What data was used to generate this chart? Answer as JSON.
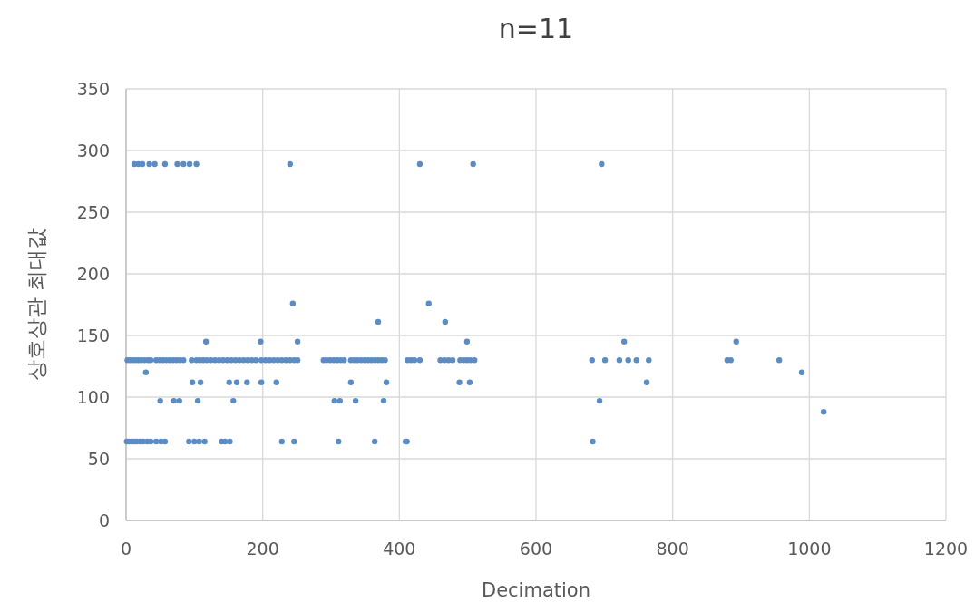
{
  "chart_data": {
    "type": "scatter",
    "title": "n=11",
    "xlabel": "Decimation",
    "ylabel": "상호상관 최대값",
    "xlim": [
      0,
      1200
    ],
    "xticks": [
      0,
      200,
      400,
      600,
      800,
      1000,
      1200
    ],
    "ylim": [
      0,
      350
    ],
    "yticks": [
      0,
      50,
      100,
      150,
      200,
      250,
      300,
      350
    ],
    "grid": true,
    "marker": "circle",
    "series": [
      {
        "color": "#5b8cc4",
        "x": [
          12,
          18,
          24,
          34,
          42,
          57,
          75,
          84,
          93,
          103,
          240,
          430,
          508,
          696,
          244,
          443,
          369,
          467,
          117,
          197,
          251,
          499,
          729,
          893,
          2,
          6,
          10,
          14,
          18,
          22,
          27,
          32,
          36,
          44,
          49,
          54,
          59,
          64,
          69,
          74,
          79,
          84,
          96,
          103,
          108,
          113,
          118,
          124,
          130,
          136,
          142,
          148,
          154,
          160,
          166,
          172,
          178,
          184,
          190,
          198,
          204,
          210,
          216,
          222,
          228,
          234,
          240,
          246,
          251,
          289,
          294,
          299,
          304,
          309,
          314,
          319,
          329,
          334,
          339,
          344,
          349,
          354,
          359,
          364,
          369,
          374,
          379,
          412,
          417,
          422,
          430,
          460,
          466,
          472,
          478,
          489,
          494,
          499,
          504,
          510,
          682,
          701,
          722,
          735,
          747,
          765,
          880,
          885,
          956,
          29,
          989,
          97,
          109,
          151,
          162,
          177,
          198,
          220,
          329,
          381,
          488,
          503,
          762,
          50,
          70,
          78,
          105,
          157,
          305,
          313,
          336,
          377,
          693,
          1,
          4,
          8,
          12,
          16,
          21,
          25,
          31,
          36,
          44,
          51,
          57,
          92,
          100,
          107,
          115,
          140,
          145,
          152,
          228,
          246,
          311,
          364,
          409,
          411,
          683,
          1021
        ],
        "values": [
          289,
          289,
          289,
          289,
          289,
          289,
          289,
          289,
          289,
          289,
          289,
          289,
          289,
          289,
          176,
          176,
          161,
          161,
          145,
          145,
          145,
          145,
          145,
          145,
          130,
          130,
          130,
          130,
          130,
          130,
          130,
          130,
          130,
          130,
          130,
          130,
          130,
          130,
          130,
          130,
          130,
          130,
          130,
          130,
          130,
          130,
          130,
          130,
          130,
          130,
          130,
          130,
          130,
          130,
          130,
          130,
          130,
          130,
          130,
          130,
          130,
          130,
          130,
          130,
          130,
          130,
          130,
          130,
          130,
          130,
          130,
          130,
          130,
          130,
          130,
          130,
          130,
          130,
          130,
          130,
          130,
          130,
          130,
          130,
          130,
          130,
          130,
          130,
          130,
          130,
          130,
          130,
          130,
          130,
          130,
          130,
          130,
          130,
          130,
          130,
          130,
          130,
          130,
          130,
          130,
          130,
          130,
          130,
          130,
          120,
          120,
          112,
          112,
          112,
          112,
          112,
          112,
          112,
          112,
          112,
          112,
          112,
          112,
          97,
          97,
          97,
          97,
          97,
          97,
          97,
          97,
          97,
          97,
          64,
          64,
          64,
          64,
          64,
          64,
          64,
          64,
          64,
          64,
          64,
          64,
          64,
          64,
          64,
          64,
          64,
          64,
          64,
          64,
          64,
          64,
          64,
          64,
          64,
          64,
          88
        ]
      }
    ]
  }
}
